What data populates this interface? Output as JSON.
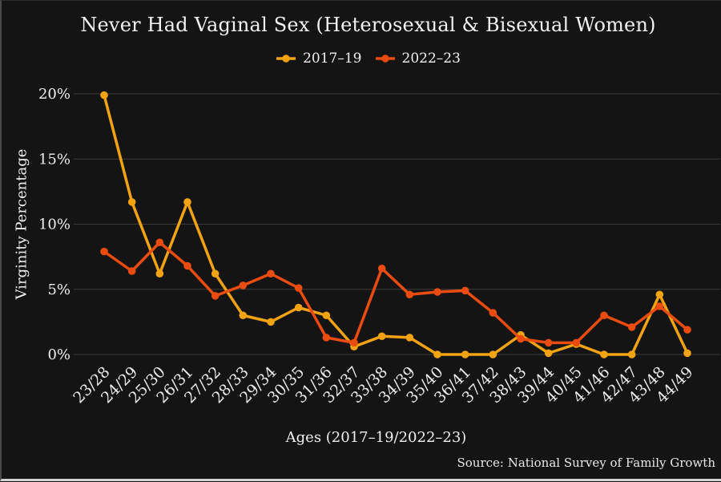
{
  "chart_data": {
    "type": "line",
    "title": "Never Had Vaginal Sex (Heterosexual & Bisexual Women)",
    "xlabel": "Ages (2017–19/2022–23)",
    "ylabel": "Virginity Percentage",
    "source": "Source: National Survey of Family Growth",
    "legend_position": "top-center",
    "grid": true,
    "background_color": "#141414",
    "gridline_color": "#3c3c3c",
    "text_color": "#f0f0f0",
    "categories": [
      "23/28",
      "24/29",
      "25/30",
      "26/31",
      "27/32",
      "28/33",
      "29/34",
      "30/35",
      "31/36",
      "32/37",
      "33/38",
      "34/39",
      "35/40",
      "36/41",
      "37/42",
      "38/43",
      "39/44",
      "40/45",
      "41/46",
      "42/47",
      "43/48",
      "44/49"
    ],
    "series": [
      {
        "name": "2017–19",
        "color": "#F2A30F",
        "values": [
          19.9,
          11.7,
          6.2,
          11.7,
          6.2,
          3.0,
          2.5,
          3.6,
          3.0,
          0.6,
          1.4,
          1.3,
          0.0,
          0.0,
          0.0,
          1.5,
          0.1,
          0.8,
          0.0,
          0.0,
          4.6,
          0.1
        ]
      },
      {
        "name": "2022–23",
        "color": "#EA4C0F",
        "values": [
          7.9,
          6.4,
          8.6,
          6.8,
          4.5,
          5.3,
          6.2,
          5.1,
          1.3,
          0.9,
          6.6,
          4.6,
          4.8,
          4.9,
          3.2,
          1.2,
          0.9,
          0.9,
          3.0,
          2.1,
          3.7,
          1.9
        ]
      }
    ],
    "yticks": [
      0,
      5,
      10,
      15,
      20
    ],
    "ytick_labels": [
      "0%",
      "5%",
      "10%",
      "15%",
      "20%"
    ],
    "ylim": [
      0,
      21.5
    ],
    "xtick_rotation": 45
  }
}
